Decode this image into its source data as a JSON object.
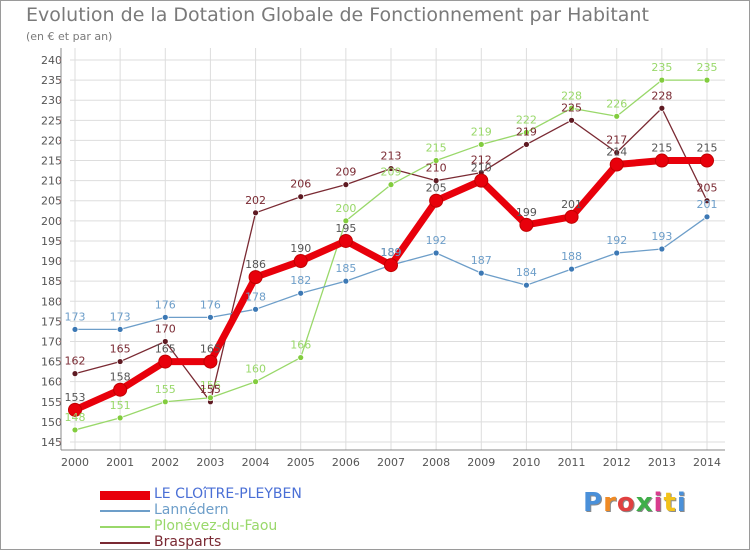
{
  "title": "Evolution de la Dotation Globale de Fonctionnement par Habitant",
  "subtitle": "(en € et par an)",
  "logo": "Proxiti",
  "colors": {
    "grid": "#dddddd",
    "axis": "#888888",
    "tick_text": "#555555",
    "label_text": "#555555",
    "logo": [
      "#4a90d9",
      "#f08a24",
      "#e04040",
      "#3fae49",
      "#d93c8e",
      "#f2c21a",
      "#4a90d9"
    ]
  },
  "chart_data": {
    "type": "line",
    "title": "Evolution de la Dotation Globale de Fonctionnement par Habitant",
    "ylabel": "(en € et par an)",
    "xlabel": "",
    "x": [
      "2000",
      "2001",
      "2002",
      "2003",
      "2004",
      "2005",
      "2006",
      "2007",
      "2008",
      "2009",
      "2010",
      "2011",
      "2012",
      "2013",
      "2014"
    ],
    "ylim": [
      145,
      240
    ],
    "yticks": [
      145,
      150,
      155,
      160,
      165,
      170,
      175,
      180,
      185,
      190,
      195,
      200,
      205,
      210,
      215,
      220,
      225,
      230,
      235,
      240
    ],
    "grid": true,
    "legend_position": "bottom-left",
    "series": [
      {
        "name": "LE CLOîTRE-PLEYBEN",
        "color": "#e8000b",
        "dot": "#e8000b",
        "label_color": "#555555",
        "bold": true,
        "values": [
          153,
          158,
          165,
          165,
          186,
          190,
          195,
          189,
          205,
          210,
          199,
          201,
          214,
          215,
          215
        ]
      },
      {
        "name": "Lannédern",
        "color": "#6d9ec9",
        "dot": "#3c78b4",
        "label_color": "#6d9ec9",
        "bold": false,
        "values": [
          173,
          173,
          176,
          176,
          178,
          182,
          185,
          189,
          192,
          187,
          184,
          188,
          192,
          193,
          201
        ]
      },
      {
        "name": "Plonévez-du-Faou",
        "color": "#99d86a",
        "dot": "#82cc3e",
        "label_color": "#99d86a",
        "bold": false,
        "values": [
          148,
          151,
          155,
          156,
          160,
          166,
          200,
          209,
          215,
          219,
          222,
          228,
          226,
          235,
          235
        ]
      },
      {
        "name": "Brasparts",
        "color": "#7a2a33",
        "dot": "#5e1a22",
        "label_color": "#7a2a33",
        "bold": false,
        "values": [
          162,
          165,
          170,
          155,
          202,
          206,
          209,
          213,
          210,
          212,
          219,
          225,
          217,
          228,
          205
        ]
      }
    ]
  }
}
